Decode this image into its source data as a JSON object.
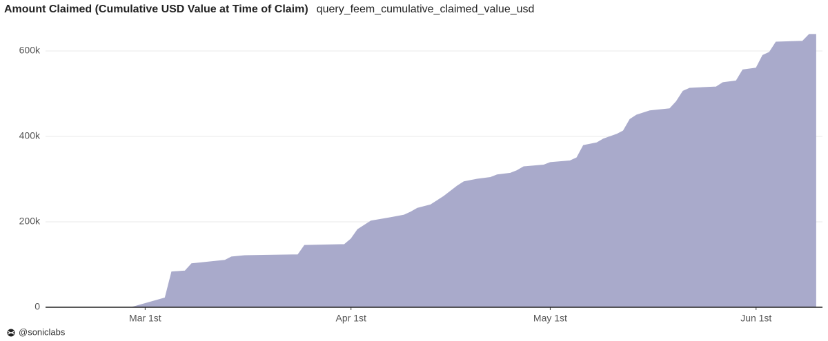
{
  "chart_data": {
    "type": "area",
    "title": "Amount Claimed (Cumulative USD Value at Time of Claim)",
    "subtitle": "query_feem_cumulative_claimed_value_usd",
    "footer": "@soniclabs",
    "x": [
      "Feb 14",
      "Feb 27",
      "Mar 4",
      "Mar 5",
      "Mar 7",
      "Mar 8",
      "Mar 13",
      "Mar 14",
      "Mar 16",
      "Mar 24",
      "Mar 25",
      "Mar 31",
      "Apr 1",
      "Apr 2",
      "Apr 4",
      "Apr 7",
      "Apr 9",
      "Apr 10",
      "Apr 11",
      "Apr 13",
      "Apr 14",
      "Apr 15",
      "Apr 17",
      "Apr 18",
      "Apr 20",
      "Apr 22",
      "Apr 23",
      "Apr 25",
      "Apr 26",
      "Apr 27",
      "Apr 30",
      "May 1",
      "May 4",
      "May 5",
      "May 6",
      "May 8",
      "May 9",
      "May 11",
      "May 12",
      "May 13",
      "May 14",
      "May 16",
      "May 19",
      "May 20",
      "May 21",
      "May 22",
      "May 26",
      "May 27",
      "May 29",
      "May 30",
      "Jun 1",
      "Jun 2",
      "Jun 3",
      "Jun 4",
      "Jun 8",
      "Jun 9",
      "Jun 10"
    ],
    "series": [
      {
        "name": "cumulative_claimed_value_usd",
        "color": "#a9aacb",
        "values": [
          0,
          0,
          22000,
          83000,
          85000,
          102000,
          110000,
          118000,
          121000,
          123000,
          145000,
          147000,
          160000,
          182000,
          202000,
          210000,
          216000,
          223000,
          232000,
          240000,
          250000,
          260000,
          284000,
          294000,
          300000,
          304000,
          310000,
          314000,
          320000,
          329000,
          333000,
          339000,
          343000,
          350000,
          379000,
          385000,
          394000,
          405000,
          413000,
          440000,
          450000,
          460000,
          465000,
          482000,
          506000,
          513000,
          516000,
          526000,
          530000,
          556000,
          560000,
          590000,
          597000,
          621000,
          623000,
          639000,
          639000
        ]
      }
    ],
    "xlim": [
      "Feb 14",
      "Jun 11"
    ],
    "xticks": [
      {
        "value": "Mar 1",
        "label": "Mar 1st"
      },
      {
        "value": "Apr 1",
        "label": "Apr 1st"
      },
      {
        "value": "May 1",
        "label": "May 1st"
      },
      {
        "value": "Jun 1",
        "label": "Jun 1st"
      }
    ],
    "ylim": [
      0,
      650000
    ],
    "yticks": [
      {
        "value": 0,
        "label": "0"
      },
      {
        "value": 200000,
        "label": "200k"
      },
      {
        "value": 400000,
        "label": "400k"
      },
      {
        "value": 600000,
        "label": "600k"
      }
    ],
    "grid": true
  }
}
